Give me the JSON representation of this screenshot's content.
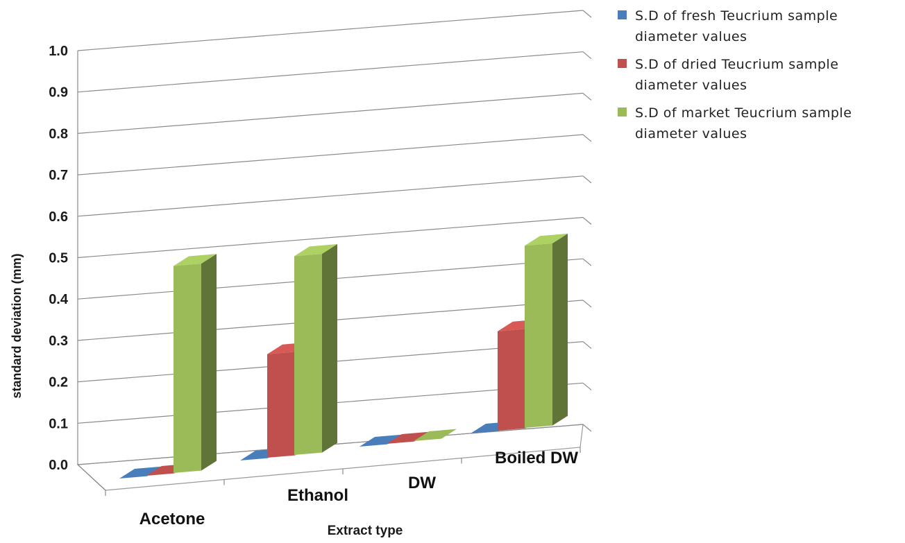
{
  "chart_data": {
    "type": "bar",
    "style": "3d-clustered-column",
    "xlabel": "Extract type",
    "ylabel": "standard deviation  (mm)",
    "ylim": [
      0,
      1.0
    ],
    "yticks": [
      "0.0",
      "0.1",
      "0.2",
      "0.3",
      "0.4",
      "0.5",
      "0.6",
      "0.7",
      "0.8",
      "0.9",
      "1.0"
    ],
    "categories": [
      "Acetone",
      "Ethanol",
      "DW",
      "Boiled DW"
    ],
    "series": [
      {
        "name": "S.D of fresh Teucrium sample diameter values",
        "color": "#4a7ebb",
        "values": [
          0,
          0,
          0,
          0
        ]
      },
      {
        "name": "S.D of dried Teucrium sample diameter values",
        "color": "#c0504d",
        "values": [
          0,
          0.25,
          0,
          0.24
        ]
      },
      {
        "name": "S.D of market Teucrium sample diameter values",
        "color": "#9bbb59",
        "values": [
          0.5,
          0.48,
          0,
          0.44
        ]
      }
    ],
    "grid": true,
    "legend_position": "top-right"
  }
}
